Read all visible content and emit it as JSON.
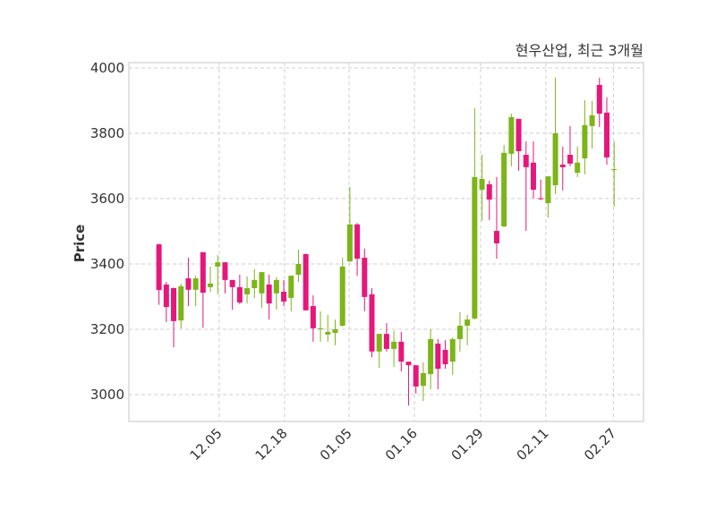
{
  "chart_data": {
    "type": "candlestick",
    "title": "현우산업, 최근 3개월",
    "xlabel": "",
    "ylabel": "Price",
    "ylim": [
      2918,
      4016
    ],
    "xlim": [
      -4.1,
      66
    ],
    "grid": true,
    "yticks": [
      3000,
      3200,
      3400,
      3600,
      3800,
      4000
    ],
    "xticks": [
      {
        "label": "12.05",
        "pos": 8.2
      },
      {
        "label": "12.18",
        "pos": 17.1
      },
      {
        "label": "01.05",
        "pos": 25.9
      },
      {
        "label": "01.16",
        "pos": 34.8
      },
      {
        "label": "01.29",
        "pos": 43.8
      },
      {
        "label": "02.11",
        "pos": 52.7
      },
      {
        "label": "02.27",
        "pos": 61.9
      }
    ],
    "colors": {
      "up": "#7cb518",
      "down": "#e6177a"
    },
    "ohlc_fields": [
      "open",
      "high",
      "low",
      "close"
    ],
    "ohlc": [
      [
        3460,
        3462,
        3275,
        3320
      ],
      [
        3337,
        3345,
        3222,
        3268
      ],
      [
        3326,
        3328,
        3145,
        3225
      ],
      [
        3227,
        3340,
        3203,
        3332
      ],
      [
        3356,
        3419,
        3271,
        3321
      ],
      [
        3321,
        3364,
        3271,
        3356
      ],
      [
        3436,
        3436,
        3205,
        3312
      ],
      [
        3329,
        3392,
        3315,
        3340
      ],
      [
        3392,
        3427,
        3307,
        3405
      ],
      [
        3405,
        3405,
        3310,
        3351
      ],
      [
        3351,
        3351,
        3260,
        3329
      ],
      [
        3329,
        3367,
        3277,
        3282
      ],
      [
        3307,
        3362,
        3279,
        3326
      ],
      [
        3326,
        3384,
        3296,
        3351
      ],
      [
        3310,
        3375,
        3266,
        3375
      ],
      [
        3337,
        3367,
        3230,
        3279
      ],
      [
        3310,
        3359,
        3260,
        3351
      ],
      [
        3315,
        3351,
        3271,
        3285
      ],
      [
        3296,
        3364,
        3255,
        3364
      ],
      [
        3367,
        3444,
        3345,
        3400
      ],
      [
        3430,
        3432,
        3258,
        3258
      ],
      [
        3271,
        3304,
        3162,
        3203
      ],
      [
        3203,
        3255,
        3162,
        3203
      ],
      [
        3184,
        3244,
        3162,
        3192
      ],
      [
        3189,
        3230,
        3151,
        3200
      ],
      [
        3211,
        3419,
        3208,
        3392
      ],
      [
        3408,
        3636,
        3405,
        3521
      ],
      [
        3521,
        3525,
        3364,
        3416
      ],
      [
        3419,
        3447,
        3255,
        3299
      ],
      [
        3307,
        3326,
        3115,
        3132
      ],
      [
        3132,
        3186,
        3082,
        3186
      ],
      [
        3186,
        3219,
        3132,
        3140
      ],
      [
        3140,
        3195,
        3085,
        3162
      ],
      [
        3162,
        3192,
        3071,
        3101
      ],
      [
        3101,
        3101,
        2967,
        3090
      ],
      [
        3090,
        3090,
        3003,
        3025
      ],
      [
        3027,
        3099,
        2981,
        3066
      ],
      [
        3063,
        3200,
        3016,
        3170
      ],
      [
        3156,
        3170,
        3016,
        3079
      ],
      [
        3137,
        3167,
        3079,
        3093
      ],
      [
        3101,
        3175,
        3060,
        3170
      ],
      [
        3170,
        3252,
        3132,
        3211
      ],
      [
        3211,
        3244,
        3151,
        3230
      ],
      [
        3233,
        3877,
        3230,
        3666
      ],
      [
        3627,
        3734,
        3532,
        3660
      ],
      [
        3644,
        3655,
        3534,
        3597
      ],
      [
        3501,
        3666,
        3416,
        3463
      ],
      [
        3515,
        3764,
        3512,
        3740
      ],
      [
        3737,
        3860,
        3699,
        3849
      ],
      [
        3844,
        3844,
        3685,
        3745
      ],
      [
        3734,
        3775,
        3501,
        3696
      ],
      [
        3710,
        3775,
        3600,
        3627
      ],
      [
        3601,
        3658,
        3595,
        3600
      ],
      [
        3586,
        3668,
        3542,
        3668
      ],
      [
        3641,
        3970,
        3614,
        3800
      ],
      [
        3704,
        3759,
        3625,
        3696
      ],
      [
        3734,
        3822,
        3699,
        3707
      ],
      [
        3679,
        3759,
        3666,
        3710
      ],
      [
        3723,
        3901,
        3674,
        3825
      ],
      [
        3822,
        3899,
        3753,
        3855
      ],
      [
        3948,
        3970,
        3819,
        3860
      ],
      [
        3863,
        3910,
        3704,
        3726
      ],
      [
        3690,
        3775,
        3575,
        3690
      ]
    ]
  }
}
